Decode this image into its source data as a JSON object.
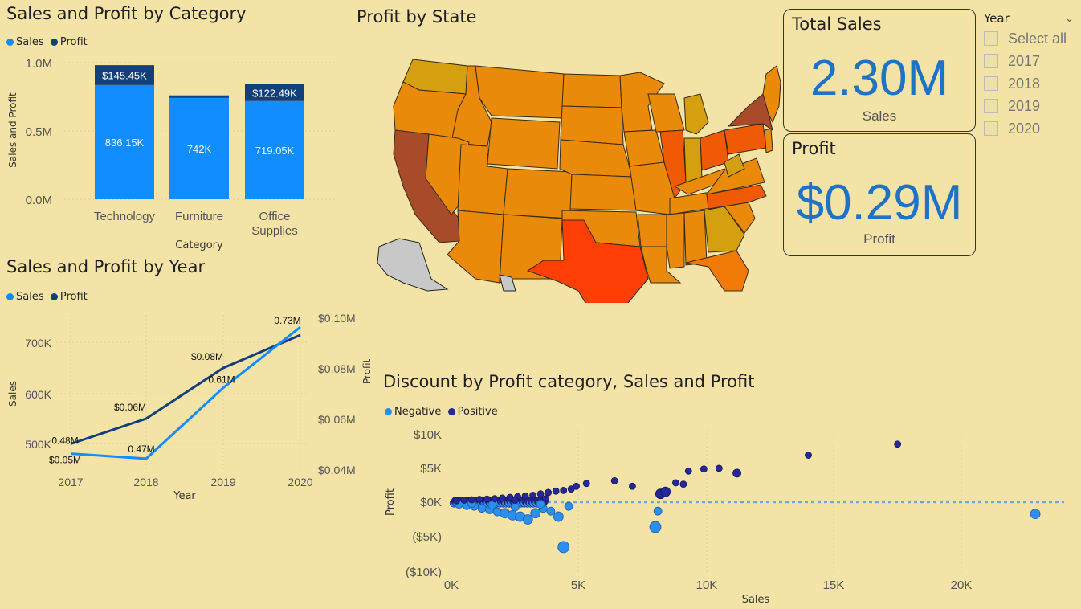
{
  "bar_chart": {
    "title": "Sales and Profit by Category",
    "legend": [
      {
        "label": "Sales",
        "color": "#118dff"
      },
      {
        "label": "Profit",
        "color": "#12407a"
      }
    ],
    "ylabel": "Sales and Profit",
    "xlabel": "Category",
    "yticks": [
      "1.0M",
      "0.5M",
      "0.0M"
    ],
    "sales_labels": [
      "836.15K",
      "742K",
      "719.05K"
    ],
    "profit_labels": [
      "$145.45K",
      "",
      "$122.49K"
    ],
    "categories": [
      "Technology",
      "Furniture",
      "Office Supplies"
    ]
  },
  "line_chart": {
    "title": "Sales and Profit by Year",
    "legend": [
      {
        "label": "Sales",
        "color": "#118dff"
      },
      {
        "label": "Profit",
        "color": "#12407a"
      }
    ],
    "ylabel": "Sales",
    "y2label": "Profit",
    "xlabel": "Year",
    "yticks": [
      "700K",
      "600K",
      "500K"
    ],
    "y2ticks": [
      "$0.10M",
      "$0.08M",
      "$0.06M",
      "$0.04M"
    ],
    "xticks": [
      "2017",
      "2018",
      "2019",
      "2020"
    ],
    "sales_labels": [
      "0.48M",
      "0.47M",
      "0.61M",
      "0.73M"
    ],
    "profit_labels": [
      "$0.05M",
      "$0.06M",
      "$0.08M",
      ""
    ]
  },
  "map": {
    "title": "Profit by State"
  },
  "kpi_sales": {
    "title": "Total Sales",
    "value": "2.30M",
    "sub": "Sales"
  },
  "kpi_profit": {
    "title": "Profit",
    "value": "$0.29M",
    "sub": "Profit"
  },
  "slicer": {
    "title": "Year",
    "options": [
      "Select all",
      "2017",
      "2018",
      "2019",
      "2020"
    ]
  },
  "scatter": {
    "title": "Discount by Profit category, Sales and Profit",
    "legend": [
      {
        "label": "Negative",
        "color": "#2b8ef0"
      },
      {
        "label": "Positive",
        "color": "#26289a"
      }
    ],
    "ylabel": "Profit",
    "xlabel": "Sales",
    "yticks": [
      "$10K",
      "$5K",
      "$0K",
      "($5K)",
      "($10K)"
    ],
    "xticks": [
      "0K",
      "5K",
      "10K",
      "15K",
      "20K"
    ]
  },
  "chart_data": [
    {
      "type": "bar",
      "title": "Sales and Profit by Category",
      "categories": [
        "Technology",
        "Furniture",
        "Office Supplies"
      ],
      "series": [
        {
          "name": "Sales",
          "values": [
            836150,
            742000,
            719050
          ]
        },
        {
          "name": "Profit",
          "values": [
            145450,
            18450,
            122490
          ]
        }
      ],
      "stacked": true,
      "xlabel": "Category",
      "ylabel": "Sales and Profit",
      "ylim": [
        0,
        1000000
      ],
      "legend": "top-left"
    },
    {
      "type": "line",
      "title": "Sales and Profit by Year",
      "x": [
        2017,
        2018,
        2019,
        2020
      ],
      "series": [
        {
          "name": "Sales",
          "axis": "left",
          "values": [
            480000,
            470000,
            610000,
            730000
          ]
        },
        {
          "name": "Profit",
          "axis": "right",
          "values": [
            0.05,
            0.06,
            0.08,
            0.093
          ]
        }
      ],
      "xlabel": "Year",
      "ylabel": "Sales",
      "y2label": "Profit",
      "ylim": [
        460000,
        745000
      ],
      "y2lim": [
        0.035,
        0.102
      ],
      "legend": "top-left"
    },
    {
      "type": "scatter",
      "title": "Discount by Profit category, Sales and Profit",
      "xlabel": "Sales",
      "ylabel": "Profit",
      "xlim": [
        0,
        24000
      ],
      "ylim": [
        -10000,
        10000
      ],
      "legend": "top-left",
      "series": [
        {
          "name": "Negative",
          "points": [
            [
              300,
              -300
            ],
            [
              600,
              -500
            ],
            [
              900,
              -600
            ],
            [
              1200,
              -900
            ],
            [
              1500,
              -1100
            ],
            [
              1800,
              -1400
            ],
            [
              2100,
              -1600
            ],
            [
              2400,
              -1900
            ],
            [
              2700,
              -2100
            ],
            [
              3000,
              -2500
            ],
            [
              3300,
              -1600
            ],
            [
              3600,
              -900
            ],
            [
              3900,
              -1300
            ],
            [
              4200,
              -2100
            ],
            [
              4600,
              -600
            ],
            [
              800,
              -200
            ],
            [
              1600,
              -400
            ],
            [
              2500,
              -700
            ],
            [
              3500,
              -300
            ],
            [
              8100,
              -1300
            ],
            [
              8000,
              -3600
            ],
            [
              4400,
              -6500
            ],
            [
              22900,
              -1700
            ]
          ]
        },
        {
          "name": "Positive",
          "points": [
            [
              200,
              200
            ],
            [
              500,
              300
            ],
            [
              800,
              350
            ],
            [
              1100,
              400
            ],
            [
              1400,
              450
            ],
            [
              1700,
              500
            ],
            [
              2000,
              600
            ],
            [
              2300,
              700
            ],
            [
              2600,
              800
            ],
            [
              2900,
              900
            ],
            [
              3200,
              1000
            ],
            [
              3500,
              1200
            ],
            [
              3800,
              1400
            ],
            [
              4100,
              1600
            ],
            [
              4400,
              1700
            ],
            [
              4700,
              1900
            ],
            [
              4900,
              2300
            ],
            [
              5300,
              2700
            ],
            [
              6400,
              3100
            ],
            [
              7100,
              2300
            ],
            [
              8200,
              1200
            ],
            [
              8400,
              1500
            ],
            [
              8800,
              2800
            ],
            [
              9100,
              2600
            ],
            [
              9300,
              4500
            ],
            [
              9900,
              4800
            ],
            [
              10500,
              4900
            ],
            [
              11200,
              4200
            ],
            [
              14000,
              6800
            ],
            [
              17500,
              8400
            ],
            [
              2500,
              300
            ],
            [
              3700,
              500
            ]
          ]
        }
      ]
    }
  ]
}
